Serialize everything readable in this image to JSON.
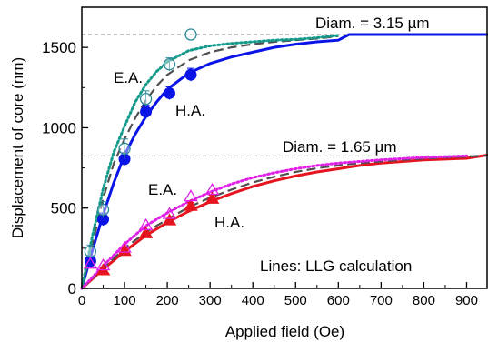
{
  "chart_data": {
    "type": "scatter",
    "xlabel": "Applied field (Oe)",
    "ylabel": "Displacement of core (nm)",
    "xlim": [
      0,
      950
    ],
    "ylim": [
      0,
      1750
    ],
    "x_ticks": [
      0,
      100,
      200,
      300,
      400,
      500,
      600,
      700,
      800,
      900
    ],
    "y_ticks": [
      0,
      500,
      1000,
      1500
    ],
    "x_minor_step": 50,
    "y_minor_step": 250,
    "grid": false,
    "annotations": {
      "diam_large": "Diam. = 3.15 µm",
      "diam_small": "Diam. = 1.65 µm",
      "ea_large": "E.A.",
      "ha_large": "H.A.",
      "ea_small": "E.A.",
      "ha_small": "H.A.",
      "lines_note": "Lines: LLG calculation"
    },
    "reference_lines": [
      {
        "y": 1580,
        "style": "dashed",
        "color": "#808080"
      },
      {
        "y": 825,
        "style": "dashed",
        "color": "#808080"
      }
    ],
    "series": [
      {
        "group": "3.15um",
        "kind": "line",
        "style": "solid",
        "color": "#0a14e6",
        "x": [
          0,
          25,
          50,
          75,
          100,
          125,
          150,
          175,
          200,
          250,
          300,
          350,
          400,
          450,
          500,
          550,
          600,
          625,
          950
        ],
        "y": [
          0,
          240,
          460,
          660,
          830,
          960,
          1070,
          1160,
          1240,
          1340,
          1400,
          1440,
          1470,
          1500,
          1520,
          1535,
          1545,
          1580,
          1580
        ]
      },
      {
        "group": "3.15um",
        "kind": "line",
        "style": "dashed",
        "color": "#505050",
        "x": [
          0,
          25,
          50,
          75,
          100,
          125,
          150,
          175,
          200,
          250,
          300,
          350,
          400,
          450,
          500,
          550,
          600
        ],
        "y": [
          0,
          280,
          560,
          780,
          930,
          1060,
          1170,
          1260,
          1330,
          1420,
          1470,
          1500,
          1520,
          1535,
          1545,
          1555,
          1570
        ]
      },
      {
        "group": "3.15um",
        "kind": "line",
        "style": "dotted",
        "color": "#149a8a",
        "x": [
          0,
          25,
          50,
          75,
          100,
          125,
          150,
          175,
          200,
          250,
          300,
          350,
          400,
          450,
          500,
          550,
          600
        ],
        "y": [
          0,
          330,
          620,
          850,
          1010,
          1160,
          1270,
          1350,
          1410,
          1480,
          1510,
          1525,
          1535,
          1545,
          1550,
          1560,
          1575
        ]
      },
      {
        "group": "3.15um",
        "kind": "markers",
        "marker": "filled-circle",
        "label": "H.A.",
        "color": "#0a14e6",
        "x": [
          20,
          50,
          100,
          150,
          205,
          255
        ],
        "y": [
          170,
          430,
          805,
          1100,
          1215,
          1330
        ],
        "err": [
          30,
          40,
          40,
          40,
          40,
          40
        ]
      },
      {
        "group": "3.15um",
        "kind": "markers",
        "marker": "open-circle",
        "label": "E.A.",
        "color": "#2a8a9a",
        "x": [
          20,
          50,
          100,
          150,
          205,
          255
        ],
        "y": [
          230,
          490,
          870,
          1180,
          1395,
          1580
        ],
        "err": [
          40,
          50,
          60,
          50,
          40,
          0
        ]
      },
      {
        "group": "1.65um",
        "kind": "line",
        "style": "solid",
        "color": "#e6141e",
        "x": [
          0,
          50,
          100,
          150,
          200,
          250,
          300,
          350,
          400,
          450,
          500,
          550,
          600,
          650,
          700,
          750,
          800,
          850,
          900,
          950
        ],
        "y": [
          0,
          120,
          230,
          330,
          410,
          480,
          540,
          590,
          635,
          670,
          700,
          725,
          745,
          765,
          780,
          790,
          800,
          805,
          810,
          830
        ]
      },
      {
        "group": "1.65um",
        "kind": "line",
        "style": "dashed",
        "color": "#505050",
        "x": [
          0,
          50,
          100,
          150,
          200,
          250,
          300,
          350,
          400,
          450,
          500,
          550,
          600,
          650,
          700,
          750,
          800,
          850,
          900,
          950
        ],
        "y": [
          0,
          125,
          250,
          350,
          430,
          505,
          565,
          615,
          660,
          695,
          725,
          748,
          765,
          780,
          790,
          800,
          808,
          815,
          820,
          828
        ]
      },
      {
        "group": "1.65um",
        "kind": "line",
        "style": "dotted",
        "color": "#e020e6",
        "x": [
          0,
          50,
          100,
          150,
          200,
          250,
          300,
          350,
          400,
          450,
          500,
          550,
          600,
          650,
          700,
          750,
          800,
          850,
          900
        ],
        "y": [
          0,
          140,
          275,
          390,
          470,
          540,
          600,
          650,
          690,
          720,
          745,
          765,
          780,
          790,
          800,
          808,
          815,
          820,
          825
        ]
      },
      {
        "group": "1.65um",
        "kind": "markers",
        "marker": "filled-triangle",
        "label": "H.A.",
        "color": "#e6141e",
        "x": [
          50,
          100,
          150,
          205,
          255,
          305
        ],
        "y": [
          110,
          230,
          340,
          420,
          510,
          555
        ],
        "err": [
          20,
          20,
          25,
          25,
          25,
          25
        ]
      },
      {
        "group": "1.65um",
        "kind": "markers",
        "marker": "open-triangle",
        "label": "E.A.",
        "color": "#e020e6",
        "x": [
          20,
          50,
          100,
          150,
          205,
          255,
          305
        ],
        "y": [
          150,
          140,
          250,
          390,
          460,
          570,
          610
        ],
        "err": [
          0,
          0,
          0,
          0,
          0,
          0,
          0
        ]
      }
    ]
  }
}
